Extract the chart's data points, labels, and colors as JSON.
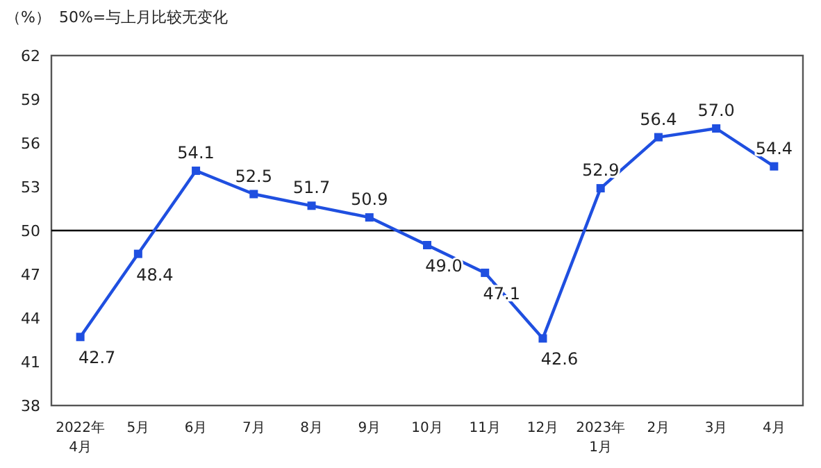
{
  "chart_data": {
    "type": "line",
    "ylabel": "（%）",
    "annotations": [
      "50%=与上月比较无变化"
    ],
    "categories": [
      "2022年\n4月",
      "5月",
      "6月",
      "7月",
      "8月",
      "9月",
      "10月",
      "11月",
      "12月",
      "2023年\n1月",
      "2月",
      "3月",
      "4月"
    ],
    "series": [
      {
        "color": "#1f4fe0",
        "values": [
          42.7,
          48.4,
          54.1,
          52.5,
          51.7,
          50.9,
          49.0,
          47.1,
          42.6,
          52.9,
          56.4,
          57.0,
          54.4
        ],
        "value_labels": [
          "42.7",
          "48.4",
          "54.1",
          "52.5",
          "51.7",
          "50.9",
          "49.0",
          "47.1",
          "42.6",
          "52.9",
          "56.4",
          "57.0",
          "54.4"
        ]
      }
    ],
    "ylim": [
      38,
      62
    ],
    "yticks": [
      38,
      41,
      44,
      47,
      50,
      53,
      56,
      59,
      62
    ],
    "ref_lines": [
      {
        "axis": "y",
        "value": 50,
        "color": "#000000"
      }
    ],
    "marker": "square",
    "line_style": "solid",
    "grid": false
  }
}
